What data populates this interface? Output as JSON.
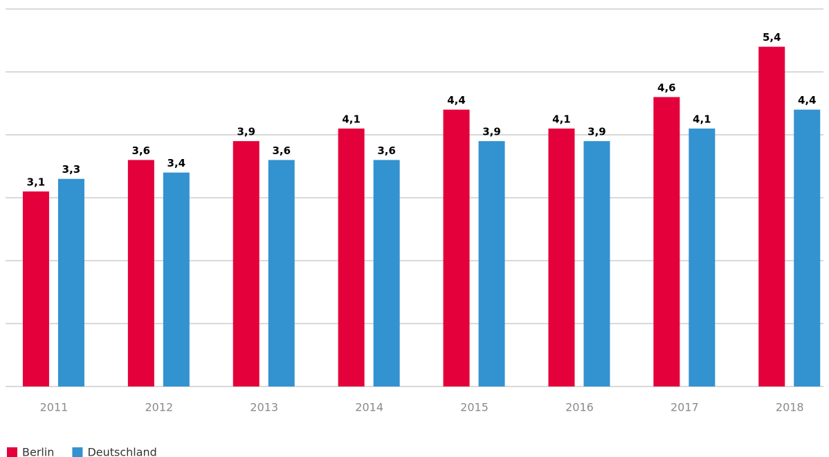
{
  "chart_data": {
    "type": "bar",
    "categories": [
      "2011",
      "2012",
      "2013",
      "2014",
      "2015",
      "2016",
      "2017",
      "2018"
    ],
    "series": [
      {
        "name": "Berlin",
        "color": "#e4003a",
        "values": [
          3.1,
          3.6,
          3.9,
          4.1,
          4.4,
          4.1,
          4.6,
          5.4
        ],
        "value_labels": [
          "3,1",
          "3,6",
          "3,9",
          "4,1",
          "4,4",
          "4,1",
          "4,6",
          "5,4"
        ]
      },
      {
        "name": "Deutschland",
        "color": "#3392d0",
        "values": [
          3.3,
          3.4,
          3.6,
          3.6,
          3.9,
          3.9,
          4.1,
          4.4
        ],
        "value_labels": [
          "3,3",
          "3,4",
          "3,6",
          "3,6",
          "3,9",
          "3,9",
          "4,1",
          "4,4"
        ]
      }
    ],
    "ylim": [
      0,
      6
    ],
    "yticks": [
      0,
      1,
      2,
      3,
      4,
      5,
      6
    ],
    "grid": true,
    "legend": "bottom-left"
  }
}
